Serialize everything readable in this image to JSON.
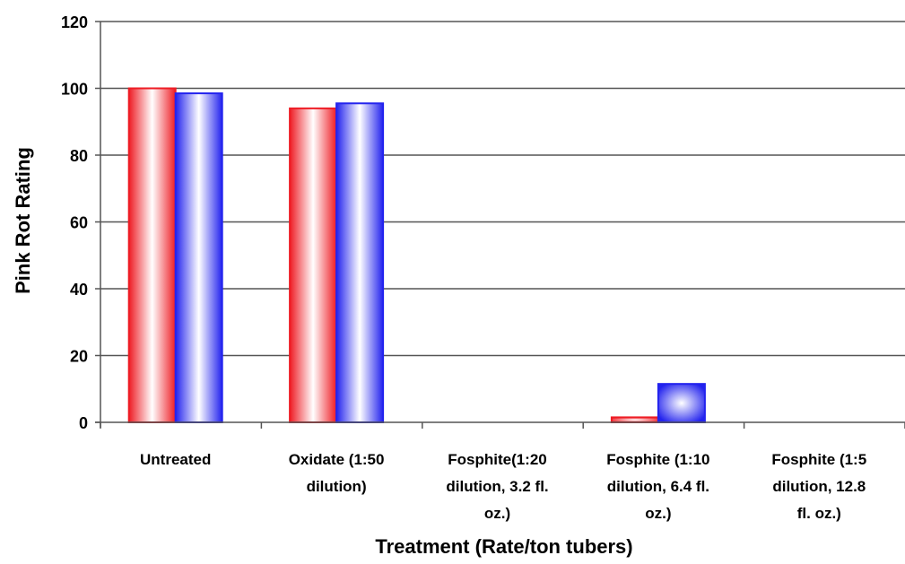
{
  "chart_data": {
    "type": "bar",
    "categories": [
      [
        "Untreated"
      ],
      [
        "Oxidate (1:50",
        "dilution)"
      ],
      [
        "Fosphite(1:20",
        "dilution, 3.2 fl.",
        "oz.)"
      ],
      [
        "Fosphite (1:10",
        "dilution, 6.4 fl.",
        "oz.)"
      ],
      [
        "Fosphite (1:5",
        "dilution, 12.8",
        "fl. oz.)"
      ]
    ],
    "series": [
      {
        "values": [
          100,
          94,
          0,
          1.5,
          0
        ],
        "color": "#ee1c24"
      },
      {
        "values": [
          98.5,
          95.5,
          0,
          11.5,
          0
        ],
        "color": "#2323ee"
      }
    ],
    "xlabel": "Treatment (Rate/ton tubers)",
    "ylabel": "Pink Rot Rating",
    "ylim": [
      0,
      120
    ],
    "yticks": [
      0,
      20,
      40,
      60,
      80,
      100,
      120
    ],
    "grid": true
  }
}
